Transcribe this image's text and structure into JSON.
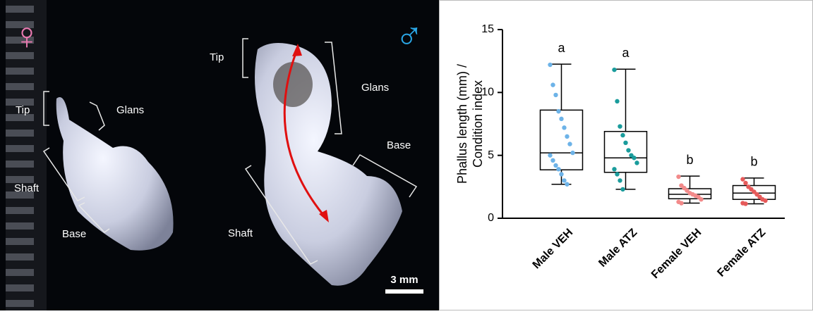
{
  "photo": {
    "female_symbol": "♀",
    "male_symbol": "♂",
    "scale_bar": "3 mm",
    "female_labels": {
      "tip": "Tip",
      "glans": "Glans",
      "shaft": "Shaft",
      "base": "Base"
    },
    "male_labels": {
      "tip": "Tip",
      "glans": "Glans",
      "shaft": "Shaft",
      "base": "Base"
    }
  },
  "chart_data": {
    "type": "box",
    "y_label": [
      "Phallus length (mm) /",
      "Condition index"
    ],
    "categories": [
      "Male VEH",
      "Male ATZ",
      "Female VEH",
      "Female ATZ"
    ],
    "colors": [
      "#6db3e8",
      "#1a9c9c",
      "#f28a8a",
      "#e65a5a"
    ],
    "letters": [
      "a",
      "a",
      "b",
      "b"
    ],
    "boxes": [
      {
        "min": 2.7,
        "q1": 3.85,
        "median": 5.2,
        "q3": 8.6,
        "max": 12.25
      },
      {
        "min": 2.3,
        "q1": 3.65,
        "median": 4.8,
        "q3": 6.9,
        "max": 11.85
      },
      {
        "min": 1.2,
        "q1": 1.55,
        "median": 1.9,
        "q3": 2.35,
        "max": 3.35
      },
      {
        "min": 1.15,
        "q1": 1.5,
        "median": 2.0,
        "q3": 2.6,
        "max": 3.2
      }
    ],
    "points": [
      [
        12.2,
        10.6,
        9.8,
        8.5,
        7.9,
        7.2,
        6.5,
        5.9,
        5.2,
        5.0,
        4.6,
        4.2,
        3.9,
        3.5,
        3.0,
        2.7
      ],
      [
        11.8,
        9.3,
        7.3,
        6.6,
        6.0,
        5.4,
        5.0,
        4.8,
        4.4,
        3.9,
        3.5,
        3.0,
        2.3
      ],
      [
        3.3,
        2.6,
        2.4,
        2.2,
        2.0,
        1.9,
        1.8,
        1.7,
        1.5,
        1.3,
        1.2
      ],
      [
        3.1,
        2.8,
        2.5,
        2.3,
        2.1,
        1.9,
        1.7,
        1.5,
        1.4,
        1.2,
        1.15
      ]
    ],
    "ylim": [
      0,
      15
    ],
    "yticks": [
      0,
      5,
      10,
      15
    ]
  }
}
